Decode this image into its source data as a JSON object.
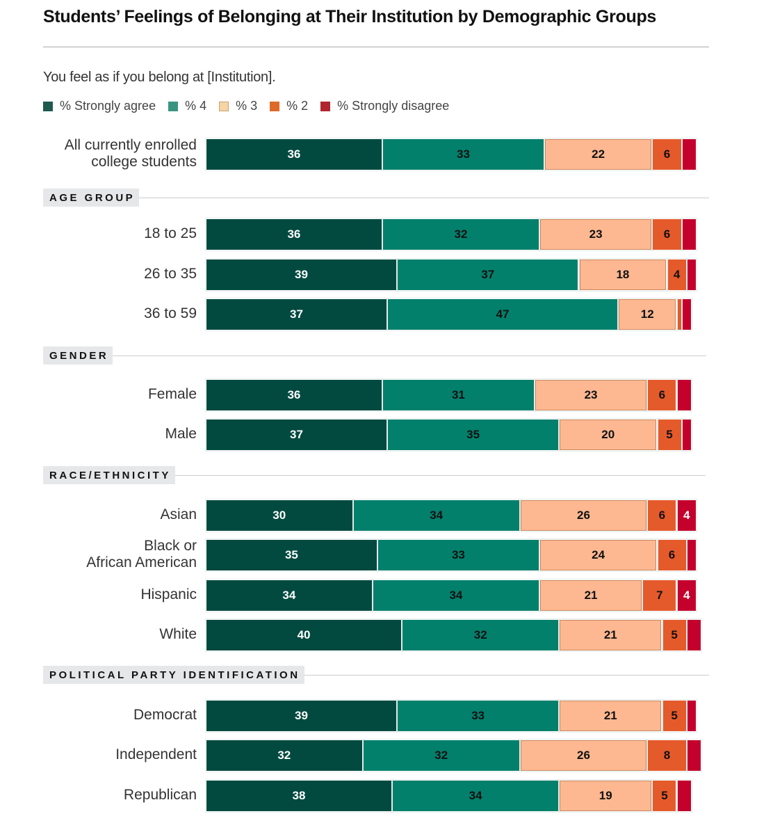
{
  "title": "Students’ Feelings of Belonging at Their Institution by Demographic Groups",
  "question": "You feel as if you belong at [Institution].",
  "legend": [
    {
      "label": "% Strongly agree",
      "color": "#1f5a4e",
      "border": "#1f5a4e"
    },
    {
      "label": "% 4",
      "color": "#3a9580",
      "border": "#3a9580"
    },
    {
      "label": "% 3",
      "color": "#f6d4a6",
      "border": "#c8a070"
    },
    {
      "label": "% 2",
      "color": "#de6a28",
      "border": "#de6a28"
    },
    {
      "label": "% Strongly disagree",
      "color": "#b0252f",
      "border": "#b0252f"
    }
  ],
  "segment_colors": [
    {
      "fill": "#024a40",
      "text": "#ffffff",
      "border": "#024a40"
    },
    {
      "fill": "#03806c",
      "text": "#111111",
      "border": "#03806c"
    },
    {
      "fill": "#fdb891",
      "text": "#111111",
      "border": "#c8865e"
    },
    {
      "fill": "#e55a2b",
      "text": "#111111",
      "border": "#e55a2b"
    },
    {
      "fill": "#c4002d",
      "text": "#ffffff",
      "border": "#c4002d"
    }
  ],
  "chart_data": {
    "type": "bar",
    "orientation": "horizontal-stacked",
    "title": "Students’ Feelings of Belonging at Their Institution by Demographic Groups",
    "subtitle": "You feel as if you belong at [Institution].",
    "series_names": [
      "% Strongly agree",
      "% 4",
      "% 3",
      "% 2",
      "% Strongly disagree"
    ],
    "legend_position": "top-left",
    "groups": [
      {
        "section": null,
        "rows": [
          {
            "label": [
              "All currently enrolled",
              "college students"
            ],
            "values": [
              36,
              33,
              22,
              6,
              3
            ],
            "labels_shown": [
              true,
              true,
              true,
              true,
              false
            ]
          }
        ]
      },
      {
        "section": "AGE GROUP",
        "rows": [
          {
            "label": [
              "18 to 25"
            ],
            "values": [
              36,
              32,
              23,
              6,
              3
            ],
            "labels_shown": [
              true,
              true,
              true,
              true,
              false
            ]
          },
          {
            "label": [
              "26 to 35"
            ],
            "values": [
              39,
              37,
              18,
              4,
              2
            ],
            "labels_shown": [
              true,
              true,
              true,
              true,
              false
            ]
          },
          {
            "label": [
              "36 to 59"
            ],
            "values": [
              37,
              47,
              12,
              1,
              2
            ],
            "labels_shown": [
              true,
              true,
              true,
              false,
              false
            ]
          }
        ]
      },
      {
        "section": "GENDER",
        "rows": [
          {
            "label": [
              "Female"
            ],
            "values": [
              36,
              31,
              23,
              6,
              3
            ],
            "labels_shown": [
              true,
              true,
              true,
              true,
              false
            ]
          },
          {
            "label": [
              "Male"
            ],
            "values": [
              37,
              35,
              20,
              5,
              2
            ],
            "labels_shown": [
              true,
              true,
              true,
              true,
              false
            ]
          }
        ]
      },
      {
        "section": "RACE/ETHNICITY",
        "rows": [
          {
            "label": [
              "Asian"
            ],
            "values": [
              30,
              34,
              26,
              6,
              4
            ],
            "labels_shown": [
              true,
              true,
              true,
              true,
              true
            ]
          },
          {
            "label": [
              "Black or",
              "African American"
            ],
            "values": [
              35,
              33,
              24,
              6,
              2
            ],
            "labels_shown": [
              true,
              true,
              true,
              true,
              false
            ]
          },
          {
            "label": [
              "Hispanic"
            ],
            "values": [
              34,
              34,
              21,
              7,
              4
            ],
            "labels_shown": [
              true,
              true,
              true,
              true,
              true
            ]
          },
          {
            "label": [
              "White"
            ],
            "values": [
              40,
              32,
              21,
              5,
              3
            ],
            "labels_shown": [
              true,
              true,
              true,
              true,
              false
            ]
          }
        ]
      },
      {
        "section": "POLITICAL PARTY IDENTIFICATION",
        "rows": [
          {
            "label": [
              "Democrat"
            ],
            "values": [
              39,
              33,
              21,
              5,
              2
            ],
            "labels_shown": [
              true,
              true,
              true,
              true,
              false
            ]
          },
          {
            "label": [
              "Independent"
            ],
            "values": [
              32,
              32,
              26,
              8,
              3
            ],
            "labels_shown": [
              true,
              true,
              true,
              true,
              false
            ]
          },
          {
            "label": [
              "Republican"
            ],
            "values": [
              38,
              34,
              19,
              5,
              3
            ],
            "labels_shown": [
              true,
              true,
              true,
              true,
              false
            ]
          }
        ]
      }
    ]
  }
}
